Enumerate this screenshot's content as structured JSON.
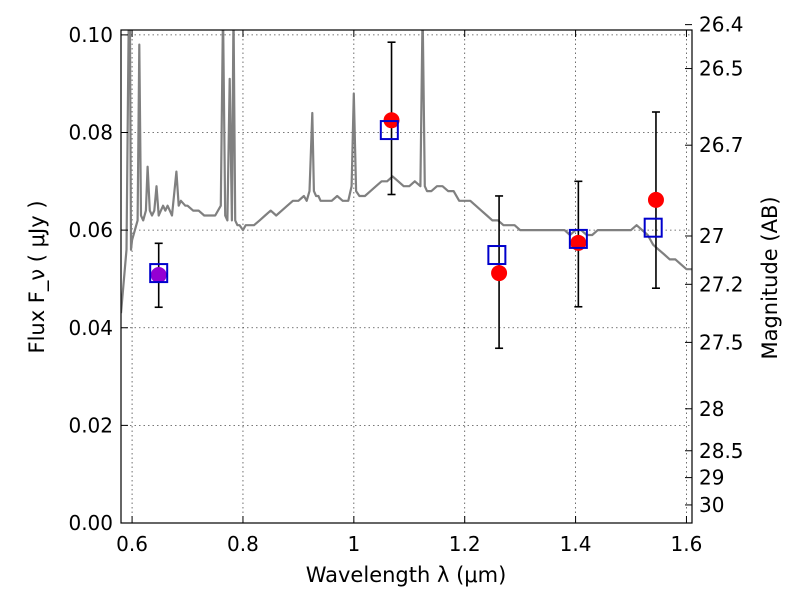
{
  "chart_data": {
    "type": "scatter",
    "xlabel": "Wavelength  λ (μm)",
    "ylabel": "Flux  F_ν  ( μJy )",
    "ylabel_right": "Magnitude (AB)",
    "xlim": [
      0.58,
      1.61
    ],
    "ylim": [
      0.0,
      0.101
    ],
    "x_ticks": [
      0.6,
      0.8,
      1.0,
      1.2,
      1.4,
      1.6
    ],
    "x_tick_labels": [
      "0.6",
      "0.8",
      "1",
      "1.2",
      "1.4",
      "1.6"
    ],
    "y_ticks": [
      0.0,
      0.02,
      0.04,
      0.06,
      0.08,
      0.1
    ],
    "y_tick_labels": [
      "0.00",
      "0.02",
      "0.04",
      "0.06",
      "0.08",
      "0.10"
    ],
    "right_axis_ticks": [
      {
        "label": "26.4",
        "flux": 0.1021
      },
      {
        "label": "26.5",
        "flux": 0.0931
      },
      {
        "label": "26.7",
        "flux": 0.0774
      },
      {
        "label": "27",
        "flux": 0.0588
      },
      {
        "label": "27.2",
        "flux": 0.0489
      },
      {
        "label": "27.5",
        "flux": 0.037
      },
      {
        "label": "28",
        "flux": 0.0234
      },
      {
        "label": "28.5",
        "flux": 0.0148
      },
      {
        "label": "29",
        "flux": 0.0093
      },
      {
        "label": "30",
        "flux": 0.0037
      }
    ],
    "grid": true,
    "colors": {
      "observed": "#ff0000",
      "model_box": "#0000cc",
      "overlap": "#9400d3",
      "spectrum": "#808080",
      "error_bar": "#000000"
    },
    "series": [
      {
        "marker": "circle",
        "x": [
          0.648,
          1.068,
          1.262,
          1.405,
          1.545
        ],
        "y": [
          0.0508,
          0.0825,
          0.0512,
          0.0574,
          0.0662
        ],
        "yerr_low": [
          0.0442,
          0.0673,
          0.0358,
          0.0443,
          0.0481
        ],
        "yerr_high": [
          0.0573,
          0.0985,
          0.067,
          0.07,
          0.0842
        ]
      },
      {
        "marker": "square",
        "x": [
          0.648,
          1.064,
          1.258,
          1.405,
          1.54
        ],
        "y": [
          0.0512,
          0.0805,
          0.0549,
          0.0582,
          0.0605
        ]
      }
    ],
    "spectrum": {
      "x": [
        0.58,
        0.59,
        0.594,
        0.596,
        0.598,
        0.6,
        0.605,
        0.61,
        0.613,
        0.616,
        0.62,
        0.625,
        0.628,
        0.632,
        0.636,
        0.64,
        0.644,
        0.648,
        0.652,
        0.656,
        0.66,
        0.664,
        0.668,
        0.672,
        0.68,
        0.684,
        0.688,
        0.696,
        0.7,
        0.71,
        0.72,
        0.73,
        0.74,
        0.75,
        0.76,
        0.764,
        0.768,
        0.772,
        0.776,
        0.78,
        0.783,
        0.786,
        0.79,
        0.794,
        0.8,
        0.805,
        0.81,
        0.82,
        0.83,
        0.84,
        0.85,
        0.86,
        0.87,
        0.88,
        0.89,
        0.9,
        0.91,
        0.915,
        0.92,
        0.925,
        0.928,
        0.932,
        0.936,
        0.94,
        0.95,
        0.96,
        0.97,
        0.98,
        0.99,
        0.996,
        1.0,
        1.004,
        1.01,
        1.02,
        1.03,
        1.04,
        1.05,
        1.06,
        1.07,
        1.08,
        1.09,
        1.1,
        1.11,
        1.12,
        1.124,
        1.128,
        1.132,
        1.136,
        1.14,
        1.15,
        1.16,
        1.17,
        1.18,
        1.19,
        1.2,
        1.21,
        1.22,
        1.23,
        1.24,
        1.25,
        1.26,
        1.27,
        1.28,
        1.29,
        1.3,
        1.32,
        1.34,
        1.36,
        1.37,
        1.38,
        1.39,
        1.4,
        1.41,
        1.42,
        1.43,
        1.44,
        1.46,
        1.48,
        1.5,
        1.51,
        1.52,
        1.53,
        1.54,
        1.55,
        1.56,
        1.57,
        1.58,
        1.59,
        1.6,
        1.61
      ],
      "y": [
        0.043,
        0.056,
        0.105,
        0.105,
        0.056,
        0.058,
        0.06,
        0.062,
        0.098,
        0.063,
        0.062,
        0.064,
        0.073,
        0.064,
        0.063,
        0.064,
        0.069,
        0.063,
        0.064,
        0.065,
        0.064,
        0.065,
        0.064,
        0.063,
        0.072,
        0.065,
        0.066,
        0.065,
        0.065,
        0.064,
        0.064,
        0.063,
        0.063,
        0.063,
        0.065,
        0.105,
        0.063,
        0.062,
        0.091,
        0.062,
        0.105,
        0.062,
        0.061,
        0.061,
        0.06,
        0.061,
        0.061,
        0.061,
        0.062,
        0.063,
        0.064,
        0.063,
        0.064,
        0.065,
        0.066,
        0.066,
        0.067,
        0.066,
        0.068,
        0.084,
        0.068,
        0.067,
        0.067,
        0.066,
        0.066,
        0.066,
        0.067,
        0.066,
        0.066,
        0.069,
        0.088,
        0.068,
        0.067,
        0.067,
        0.068,
        0.069,
        0.07,
        0.07,
        0.071,
        0.07,
        0.069,
        0.069,
        0.07,
        0.069,
        0.105,
        0.069,
        0.068,
        0.068,
        0.068,
        0.069,
        0.069,
        0.068,
        0.068,
        0.066,
        0.066,
        0.066,
        0.065,
        0.064,
        0.063,
        0.062,
        0.062,
        0.061,
        0.061,
        0.061,
        0.06,
        0.06,
        0.06,
        0.06,
        0.06,
        0.06,
        0.059,
        0.06,
        0.06,
        0.059,
        0.059,
        0.06,
        0.06,
        0.06,
        0.06,
        0.061,
        0.06,
        0.059,
        0.057,
        0.056,
        0.055,
        0.054,
        0.054,
        0.053,
        0.052,
        0.052
      ]
    }
  }
}
